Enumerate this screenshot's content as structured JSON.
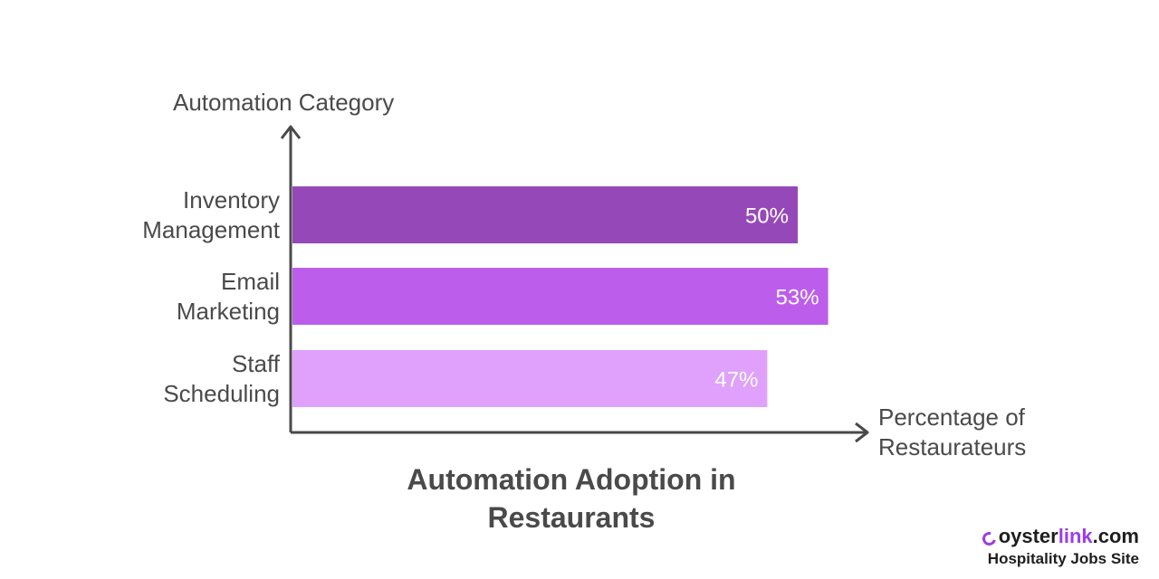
{
  "chart_data": {
    "type": "bar",
    "orientation": "horizontal",
    "title": "Automation Adoption in Restaurants",
    "ylabel": "Automation Category",
    "xlabel": "Percentage of Restaurateurs",
    "categories": [
      "Inventory Management",
      "Email Marketing",
      "Staff Scheduling"
    ],
    "category_lines": [
      [
        "Inventory",
        "Management"
      ],
      [
        "Email",
        "Marketing"
      ],
      [
        "Staff",
        "Scheduling"
      ]
    ],
    "values": [
      50,
      53,
      47
    ],
    "value_labels": [
      "50%",
      "53%",
      "47%"
    ],
    "colors": [
      "#9549b8",
      "#bc5eeb",
      "#dfa1fb"
    ],
    "xlim": [
      0,
      76
    ],
    "grid": false,
    "legend": "none"
  },
  "title_lines": [
    "Automation Adoption in",
    "Restaurants"
  ],
  "xlabel_lines": [
    "Percentage of",
    "Restaurateurs"
  ],
  "logo": {
    "brand_part1": "oyster",
    "brand_part2": "link",
    "brand_part3": ".com",
    "tagline": "Hospitality Jobs Site",
    "accent": "#9b3dea"
  }
}
